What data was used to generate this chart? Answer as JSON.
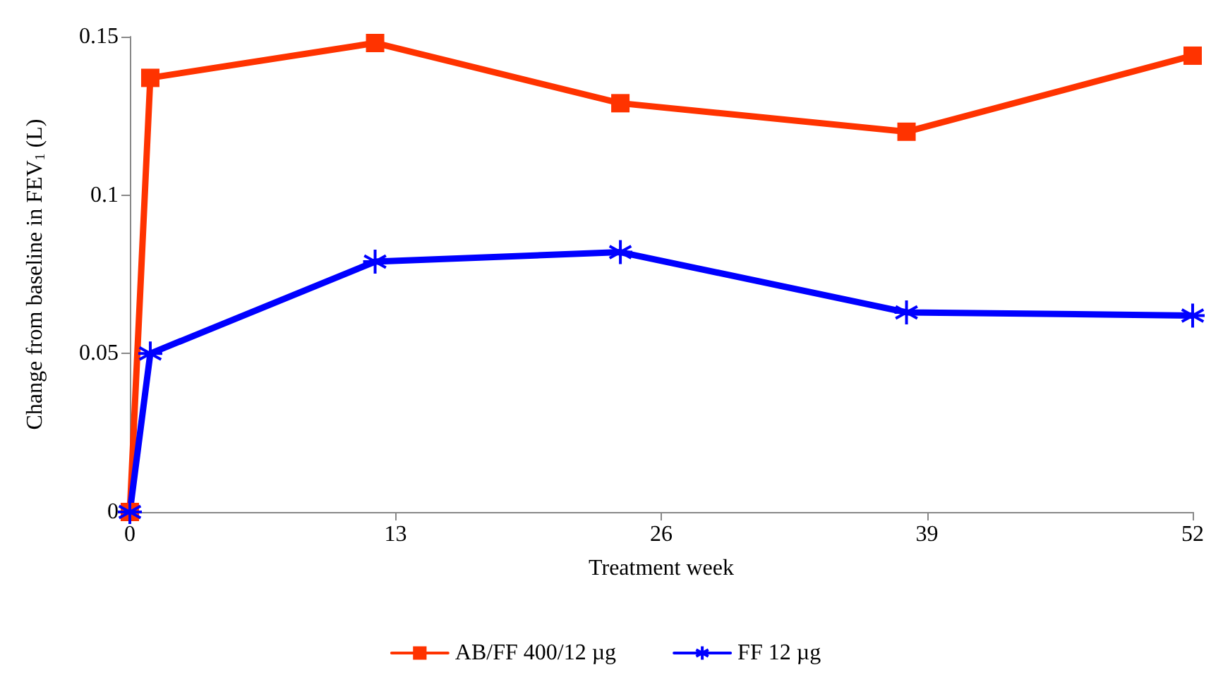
{
  "chart_data": {
    "type": "line",
    "xlabel": "Treatment week",
    "ylabel": "Change from baseline in FEV$_{1}$ (L)",
    "x": [
      0,
      1,
      12,
      24,
      38,
      52
    ],
    "series": [
      {
        "name": "AB/FF 400/12 µg",
        "color": "#ff3300",
        "marker": "square",
        "values": [
          0,
          0.137,
          0.148,
          0.129,
          0.12,
          0.144
        ]
      },
      {
        "name": "FF 12 µg",
        "color": "#0000ff",
        "marker": "cross",
        "values": [
          0,
          0.05,
          0.079,
          0.082,
          0.063,
          0.062
        ]
      }
    ],
    "xlim": [
      0,
      52
    ],
    "xticks": [
      0,
      13,
      26,
      39,
      52
    ],
    "ylim": [
      0,
      0.15
    ],
    "yticks": [
      0,
      0.05,
      0.1,
      0.15
    ],
    "grid": false,
    "legend": "bottom",
    "line_style": "solid"
  }
}
